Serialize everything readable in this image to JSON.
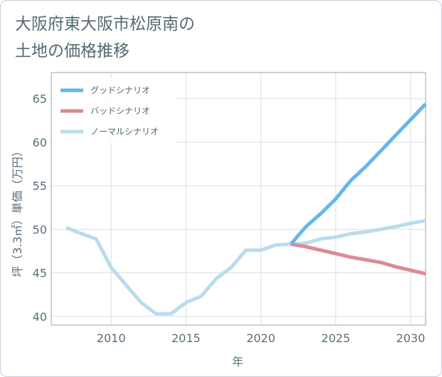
{
  "chart_data": {
    "type": "line",
    "title_lines": [
      "大阪府東大阪市松原南の",
      "土地の価格推移"
    ],
    "xlabel": "年",
    "ylabel": "坪（3.3㎡）単価（万円）",
    "xlim": [
      2006,
      2031
    ],
    "ylim": [
      39,
      68
    ],
    "x_ticks": [
      2010,
      2015,
      2020,
      2025,
      2030
    ],
    "y_ticks": [
      40,
      45,
      50,
      55,
      60,
      65
    ],
    "grid": true,
    "legend_position": "top-left",
    "series": [
      {
        "name": "グッドシナリオ",
        "color": "#66b6ea",
        "x": [
          2022,
          2023,
          2024,
          2025,
          2026,
          2027,
          2028,
          2029,
          2030,
          2031
        ],
        "y": [
          48.3,
          50.3,
          51.8,
          53.5,
          55.6,
          57.2,
          59.0,
          60.8,
          62.6,
          64.4
        ]
      },
      {
        "name": "バッドシナリオ",
        "color": "#dd8a92",
        "x": [
          2022,
          2023,
          2024,
          2025,
          2026,
          2027,
          2028,
          2029,
          2030,
          2031
        ],
        "y": [
          48.3,
          48.0,
          47.6,
          47.2,
          46.8,
          46.5,
          46.2,
          45.7,
          45.3,
          44.9
        ]
      },
      {
        "name": "ノーマルシナリオ",
        "color": "#b9dced",
        "x": [
          2007,
          2008,
          2009,
          2010,
          2011,
          2012,
          2013,
          2014,
          2015,
          2016,
          2017,
          2018,
          2019,
          2020,
          2021,
          2022,
          2023,
          2024,
          2025,
          2026,
          2027,
          2028,
          2029,
          2030,
          2031
        ],
        "y": [
          50.2,
          49.5,
          48.9,
          45.6,
          43.6,
          41.6,
          40.3,
          40.3,
          41.6,
          42.3,
          44.3,
          45.6,
          47.6,
          47.6,
          48.2,
          48.3,
          48.4,
          48.9,
          49.1,
          49.5,
          49.7,
          50.0,
          50.3,
          50.7,
          51.0
        ]
      }
    ]
  }
}
